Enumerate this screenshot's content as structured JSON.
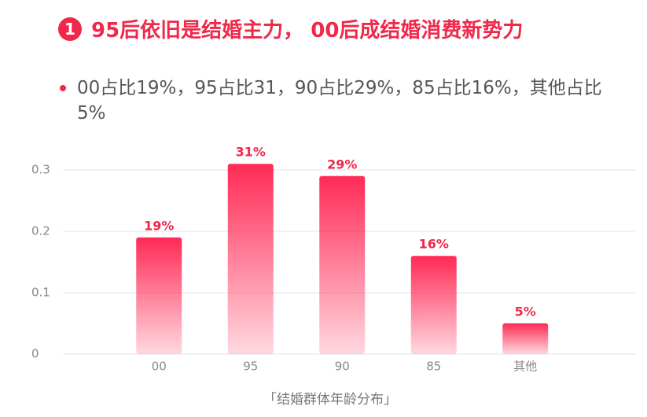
{
  "chart_data": {
    "type": "bar",
    "badge": "1",
    "title": "95后依旧是结婚主力， 00后成结婚消费新势力",
    "subtitle": "00占比19%，95占比31，90占比29%，85占比16%，其他占比5%",
    "categories": [
      "00",
      "95",
      "90",
      "85",
      "其他"
    ],
    "values": [
      0.19,
      0.31,
      0.29,
      0.16,
      0.05
    ],
    "value_labels": [
      "19%",
      "31%",
      "29%",
      "16%",
      "5%"
    ],
    "color": "#ff2a55",
    "ylim": [
      0,
      0.3
    ],
    "yticks": [
      0,
      0.1,
      0.2,
      0.3
    ],
    "grid": true,
    "x_label": "「结婚群体年龄分布」"
  }
}
